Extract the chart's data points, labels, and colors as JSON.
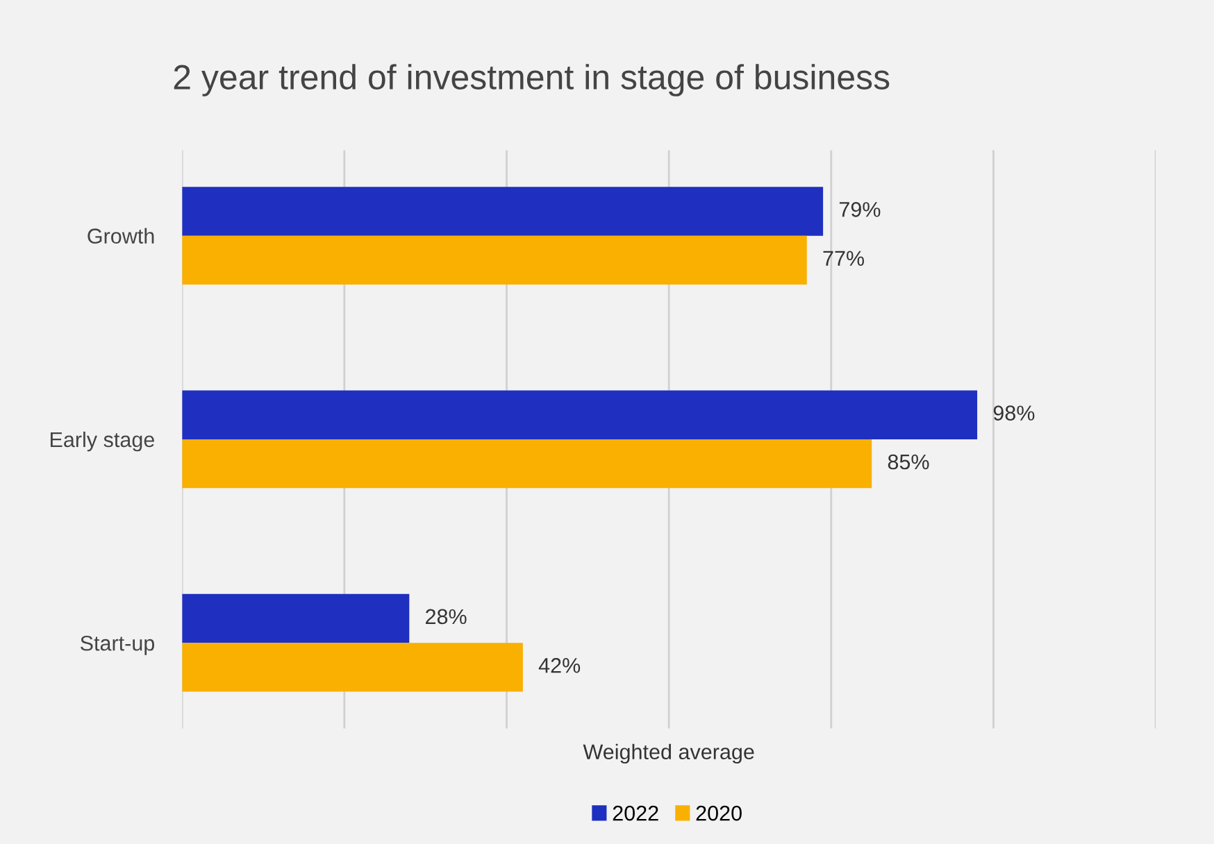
{
  "chart_data": {
    "type": "bar",
    "orientation": "horizontal",
    "title": "2 year trend of investment in stage of business",
    "xlabel": "Weighted average",
    "categories": [
      "Growth",
      "Early stage",
      "Start-up"
    ],
    "series": [
      {
        "name": "2022",
        "color": "#1f2fbf",
        "values": [
          79,
          98,
          28
        ],
        "value_labels": [
          "79%",
          "98%",
          "28%"
        ]
      },
      {
        "name": "2020",
        "color": "#f9b000",
        "values": [
          77,
          85,
          42
        ],
        "value_labels": [
          "77%",
          "85%",
          "42%"
        ]
      }
    ],
    "xlim": [
      0,
      120
    ],
    "xticks": [
      {
        "value": 0,
        "label": null
      },
      {
        "value": 20,
        "label": null
      },
      {
        "value": 40,
        "label": null
      },
      {
        "value": 60,
        "label": null
      },
      {
        "value": 80,
        "label": null
      },
      {
        "value": 100,
        "label": null
      },
      {
        "value": 120,
        "label": null
      }
    ],
    "grid": "x",
    "legend": "bottom",
    "tick_labels": "y"
  }
}
